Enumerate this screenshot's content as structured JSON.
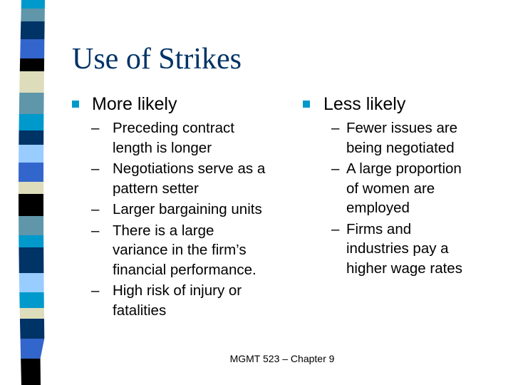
{
  "slide": {
    "title": "Use of Strikes",
    "left": {
      "heading": "More likely",
      "items": [
        {
          "lines": [
            "Preceding contract",
            "length is longer"
          ]
        },
        {
          "lines": [
            "Negotiations serve as a",
            "pattern setter"
          ]
        },
        {
          "lines": [
            "Larger bargaining units"
          ]
        },
        {
          "lines": [
            "There is a large",
            "variance in the firm’s",
            "financial performance."
          ]
        },
        {
          "lines": [
            "High risk of injury or",
            "fatalities"
          ]
        }
      ]
    },
    "right": {
      "heading": "Less likely",
      "items": [
        {
          "lines": [
            "Fewer issues are",
            "being negotiated"
          ]
        },
        {
          "lines": [
            "A large proportion",
            "of women are",
            "employed"
          ]
        },
        {
          "lines": [
            "Firms and",
            "industries pay a",
            "higher wage rates"
          ]
        }
      ]
    },
    "dash": "–",
    "footer": "MGMT 523 – Chapter 9"
  },
  "colors": {
    "title": "#003366",
    "bullet": "#0099cc",
    "stripes": [
      "#0099cc",
      "#5f96aa",
      "#003366",
      "#3366cc",
      "#000000",
      "#ddddbb",
      "#5f96aa",
      "#0099cc",
      "#003366",
      "#99ccff",
      "#3366cc",
      "#ddddbb",
      "#000000",
      "#5f96aa",
      "#0099cc",
      "#003366",
      "#99ccff",
      "#0099cc",
      "#ddddbb",
      "#003366",
      "#3366cc",
      "#000000"
    ]
  }
}
